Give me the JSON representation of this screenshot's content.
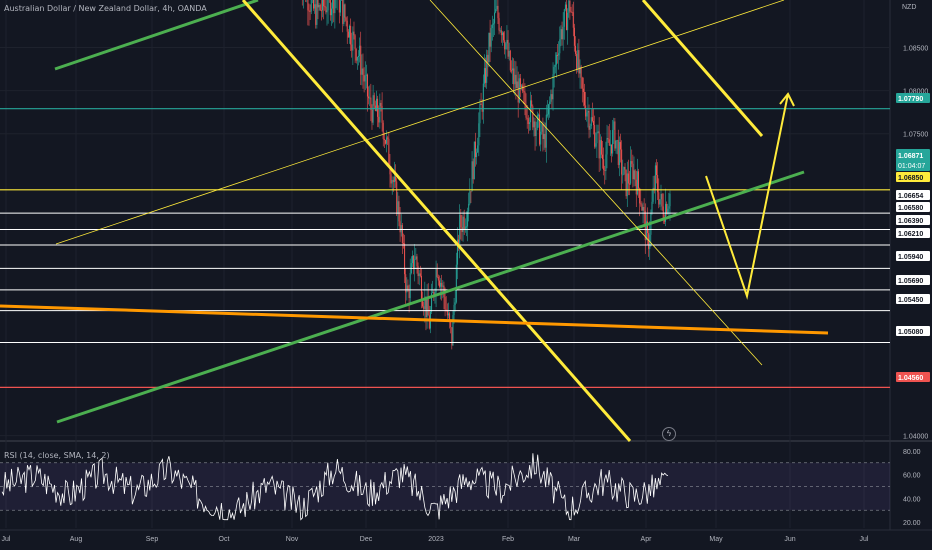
{
  "header": {
    "title": "Australian Dollar / New Zealand Dollar, 4h, OANDA",
    "currency": "NZD",
    "rsi_label": "RSI (14, close, SMA, 14, 2)"
  },
  "price_axis": {
    "ticks": [
      "1.08500",
      "1.08000",
      "1.07500",
      "1.04000"
    ],
    "badges": [
      {
        "text": "1.07790",
        "color": "#26a69a",
        "text_color": "#ffffff"
      },
      {
        "text": "1.06871",
        "text2": "01:04:07",
        "color": "#26a69a",
        "text_color": "#ffffff"
      },
      {
        "text": "1.06850",
        "color": "#ffeb3b",
        "text_color": "#131722"
      },
      {
        "text": "1.06654",
        "color": "#ffffff",
        "text_color": "#131722"
      },
      {
        "text": "1.06580",
        "color": "#ffffff",
        "text_color": "#131722"
      },
      {
        "text": "1.06390",
        "color": "#ffffff",
        "text_color": "#131722"
      },
      {
        "text": "1.06210",
        "color": "#ffffff",
        "text_color": "#131722"
      },
      {
        "text": "1.05940",
        "color": "#ffffff",
        "text_color": "#131722"
      },
      {
        "text": "1.05690",
        "color": "#ffffff",
        "text_color": "#131722"
      },
      {
        "text": "1.05450",
        "color": "#ffffff",
        "text_color": "#131722"
      },
      {
        "text": "1.05080",
        "color": "#ffffff",
        "text_color": "#131722"
      },
      {
        "text": "1.04560",
        "color": "#ef5350",
        "text_color": "#ffffff"
      }
    ]
  },
  "rsi_axis": {
    "ticks": [
      "80.00",
      "60.00",
      "40.00",
      "20.00"
    ]
  },
  "time_axis": {
    "labels": [
      "Jul",
      "Aug",
      "Sep",
      "Oct",
      "Nov",
      "Dec",
      "2023",
      "Feb",
      "Mar",
      "Apr",
      "May",
      "Jun",
      "Jul"
    ]
  },
  "chart_data": {
    "type": "candlestick",
    "symbol": "AUDNZD",
    "y_range": [
      1.0395,
      1.0905
    ],
    "rsi_levels": [
      70,
      50,
      30
    ],
    "colors": {
      "up": "#26a69a",
      "down": "#ef5350",
      "background": "#131722",
      "rsi_line": "#ffffff"
    },
    "horizontal_levels": [
      {
        "price": 1.0779,
        "color": "#26a69a"
      },
      {
        "price": 1.0685,
        "color": "#ffeb3b"
      },
      {
        "price": 1.0658,
        "color": "#ffffff"
      },
      {
        "price": 1.0639,
        "color": "#ffffff"
      },
      {
        "price": 1.0621,
        "color": "#ffffff"
      },
      {
        "price": 1.0594,
        "color": "#ffffff"
      },
      {
        "price": 1.0569,
        "color": "#ffffff"
      },
      {
        "price": 1.0545,
        "color": "#ffffff"
      },
      {
        "price": 1.0508,
        "color": "#ffffff"
      },
      {
        "price": 1.0456,
        "color": "#ef5350"
      }
    ],
    "price_path": [
      [
        0.0,
        1.093
      ],
      [
        0.04,
        1.089
      ],
      [
        0.1,
        1.091
      ],
      [
        0.16,
        1.084
      ],
      [
        0.19,
        1.078
      ],
      [
        0.22,
        1.077
      ],
      [
        0.25,
        1.07
      ],
      [
        0.27,
        1.065
      ],
      [
        0.29,
        1.056
      ],
      [
        0.31,
        1.061
      ],
      [
        0.33,
        1.057
      ],
      [
        0.35,
        1.053
      ],
      [
        0.37,
        1.06
      ],
      [
        0.39,
        1.056
      ],
      [
        0.41,
        1.051
      ],
      [
        0.43,
        1.064
      ],
      [
        0.45,
        1.066
      ],
      [
        0.47,
        1.072
      ],
      [
        0.49,
        1.078
      ],
      [
        0.51,
        1.085
      ],
      [
        0.53,
        1.089
      ],
      [
        0.55,
        1.087
      ],
      [
        0.57,
        1.082
      ],
      [
        0.6,
        1.079
      ],
      [
        0.63,
        1.077
      ],
      [
        0.66,
        1.074
      ],
      [
        0.7,
        1.086
      ],
      [
        0.73,
        1.09
      ],
      [
        0.76,
        1.08
      ],
      [
        0.79,
        1.076
      ],
      [
        0.82,
        1.072
      ],
      [
        0.85,
        1.075
      ],
      [
        0.88,
        1.069
      ],
      [
        0.9,
        1.071
      ],
      [
        0.92,
        1.068
      ],
      [
        0.94,
        1.062
      ],
      [
        0.96,
        1.07
      ],
      [
        0.98,
        1.066
      ],
      [
        1.0,
        1.068
      ]
    ],
    "rsi_path": [
      [
        0.0,
        50
      ],
      [
        0.05,
        60
      ],
      [
        0.1,
        42
      ],
      [
        0.15,
        62
      ],
      [
        0.2,
        45
      ],
      [
        0.25,
        65
      ],
      [
        0.3,
        40
      ],
      [
        0.35,
        28
      ],
      [
        0.4,
        52
      ],
      [
        0.45,
        32
      ],
      [
        0.5,
        66
      ],
      [
        0.55,
        44
      ],
      [
        0.6,
        62
      ],
      [
        0.65,
        30
      ],
      [
        0.7,
        58
      ],
      [
        0.75,
        48
      ],
      [
        0.8,
        70
      ],
      [
        0.85,
        30
      ],
      [
        0.9,
        55
      ],
      [
        0.95,
        42
      ],
      [
        1.0,
        54
      ]
    ]
  }
}
